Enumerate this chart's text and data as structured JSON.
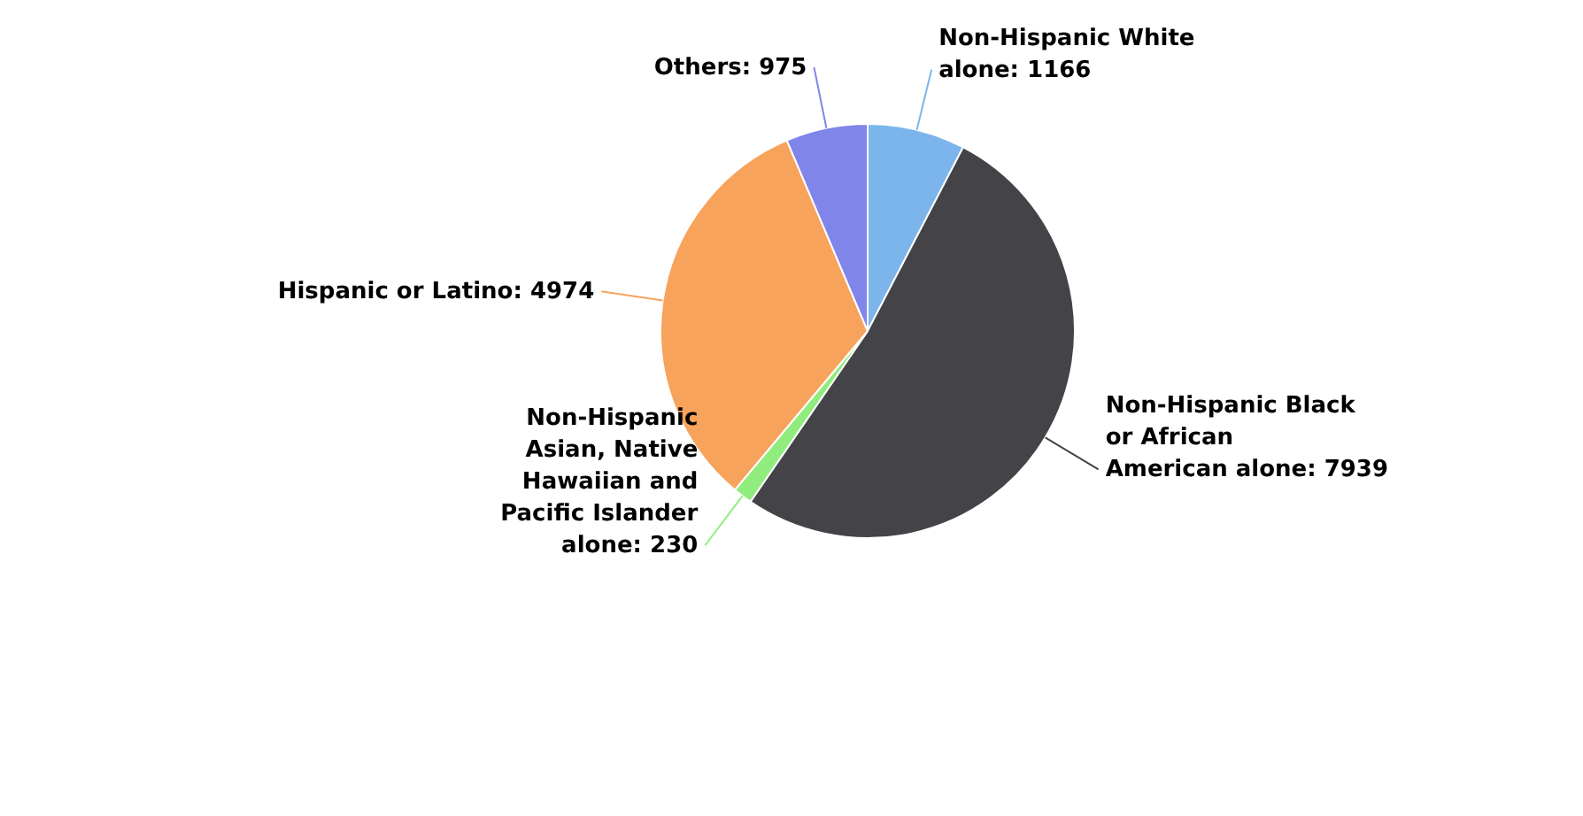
{
  "chart_data": {
    "type": "pie",
    "categories": [
      "Non-Hispanic White alone",
      "Non-Hispanic Black or African American alone",
      "Non-Hispanic Asian, Native Hawaiian and Pacific Islander alone",
      "Hispanic or Latino",
      "Others"
    ],
    "values": [
      1166,
      7939,
      230,
      4974,
      975
    ],
    "colors": [
      "#7cb5ec",
      "#434348",
      "#90ed7d",
      "#f7a35c",
      "#8085e9"
    ],
    "value_labels": [
      ": 1166",
      ": 7939",
      ": 230",
      ": 4974",
      ": 975"
    ],
    "legend": false
  }
}
